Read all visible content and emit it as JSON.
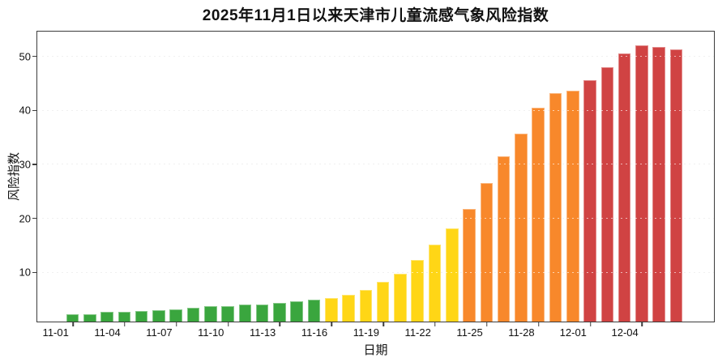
{
  "chart_data": {
    "type": "bar",
    "title": "2025年11月1日以来天津市儿童流感气象风险指数",
    "xlabel": "日期",
    "ylabel": "风险指数",
    "dates": [
      "11-01",
      "11-02",
      "11-03",
      "11-04",
      "11-05",
      "11-06",
      "11-07",
      "11-08",
      "11-09",
      "11-10",
      "11-11",
      "11-12",
      "11-13",
      "11-14",
      "11-15",
      "11-16",
      "11-17",
      "11-18",
      "11-19",
      "11-20",
      "11-21",
      "11-22",
      "11-23",
      "11-24",
      "11-25",
      "11-26",
      "11-27",
      "11-28",
      "11-29",
      "11-30",
      "12-01",
      "12-02",
      "12-03",
      "12-04",
      "12-05",
      "12-06"
    ],
    "values": [
      2.4,
      2.4,
      2.8,
      2.8,
      3.0,
      3.1,
      3.2,
      3.5,
      3.8,
      3.9,
      4.1,
      4.2,
      4.4,
      4.7,
      5.0,
      5.3,
      5.9,
      6.9,
      8.3,
      9.9,
      12.4,
      15.2,
      18.3,
      21.9,
      26.6,
      31.5,
      35.7,
      40.5,
      43.2,
      43.7,
      45.6,
      48.0,
      50.6,
      52.1,
      51.8,
      51.3
    ],
    "xtick_labels": [
      "11-01",
      "11-04",
      "11-07",
      "11-10",
      "11-13",
      "11-16",
      "11-19",
      "11-22",
      "11-25",
      "11-28",
      "12-01",
      "12-04"
    ],
    "xtick_label_every": 3,
    "yticks": [
      10,
      20,
      30,
      40,
      50
    ],
    "ylim": [
      1,
      54.5
    ],
    "grid": "dotted-horizontal",
    "risk_colors": {
      "green": "#3aa63e",
      "yellow": "#ffd616",
      "orange": "#f8882b",
      "red": "#d04343"
    },
    "color_thresholds": [
      {
        "max": 5.1,
        "level": "green"
      },
      {
        "max": 20,
        "level": "yellow"
      },
      {
        "max": 44.5,
        "level": "orange"
      },
      {
        "max": 1000,
        "level": "red"
      }
    ],
    "axis_color": "#3c3c3c"
  }
}
